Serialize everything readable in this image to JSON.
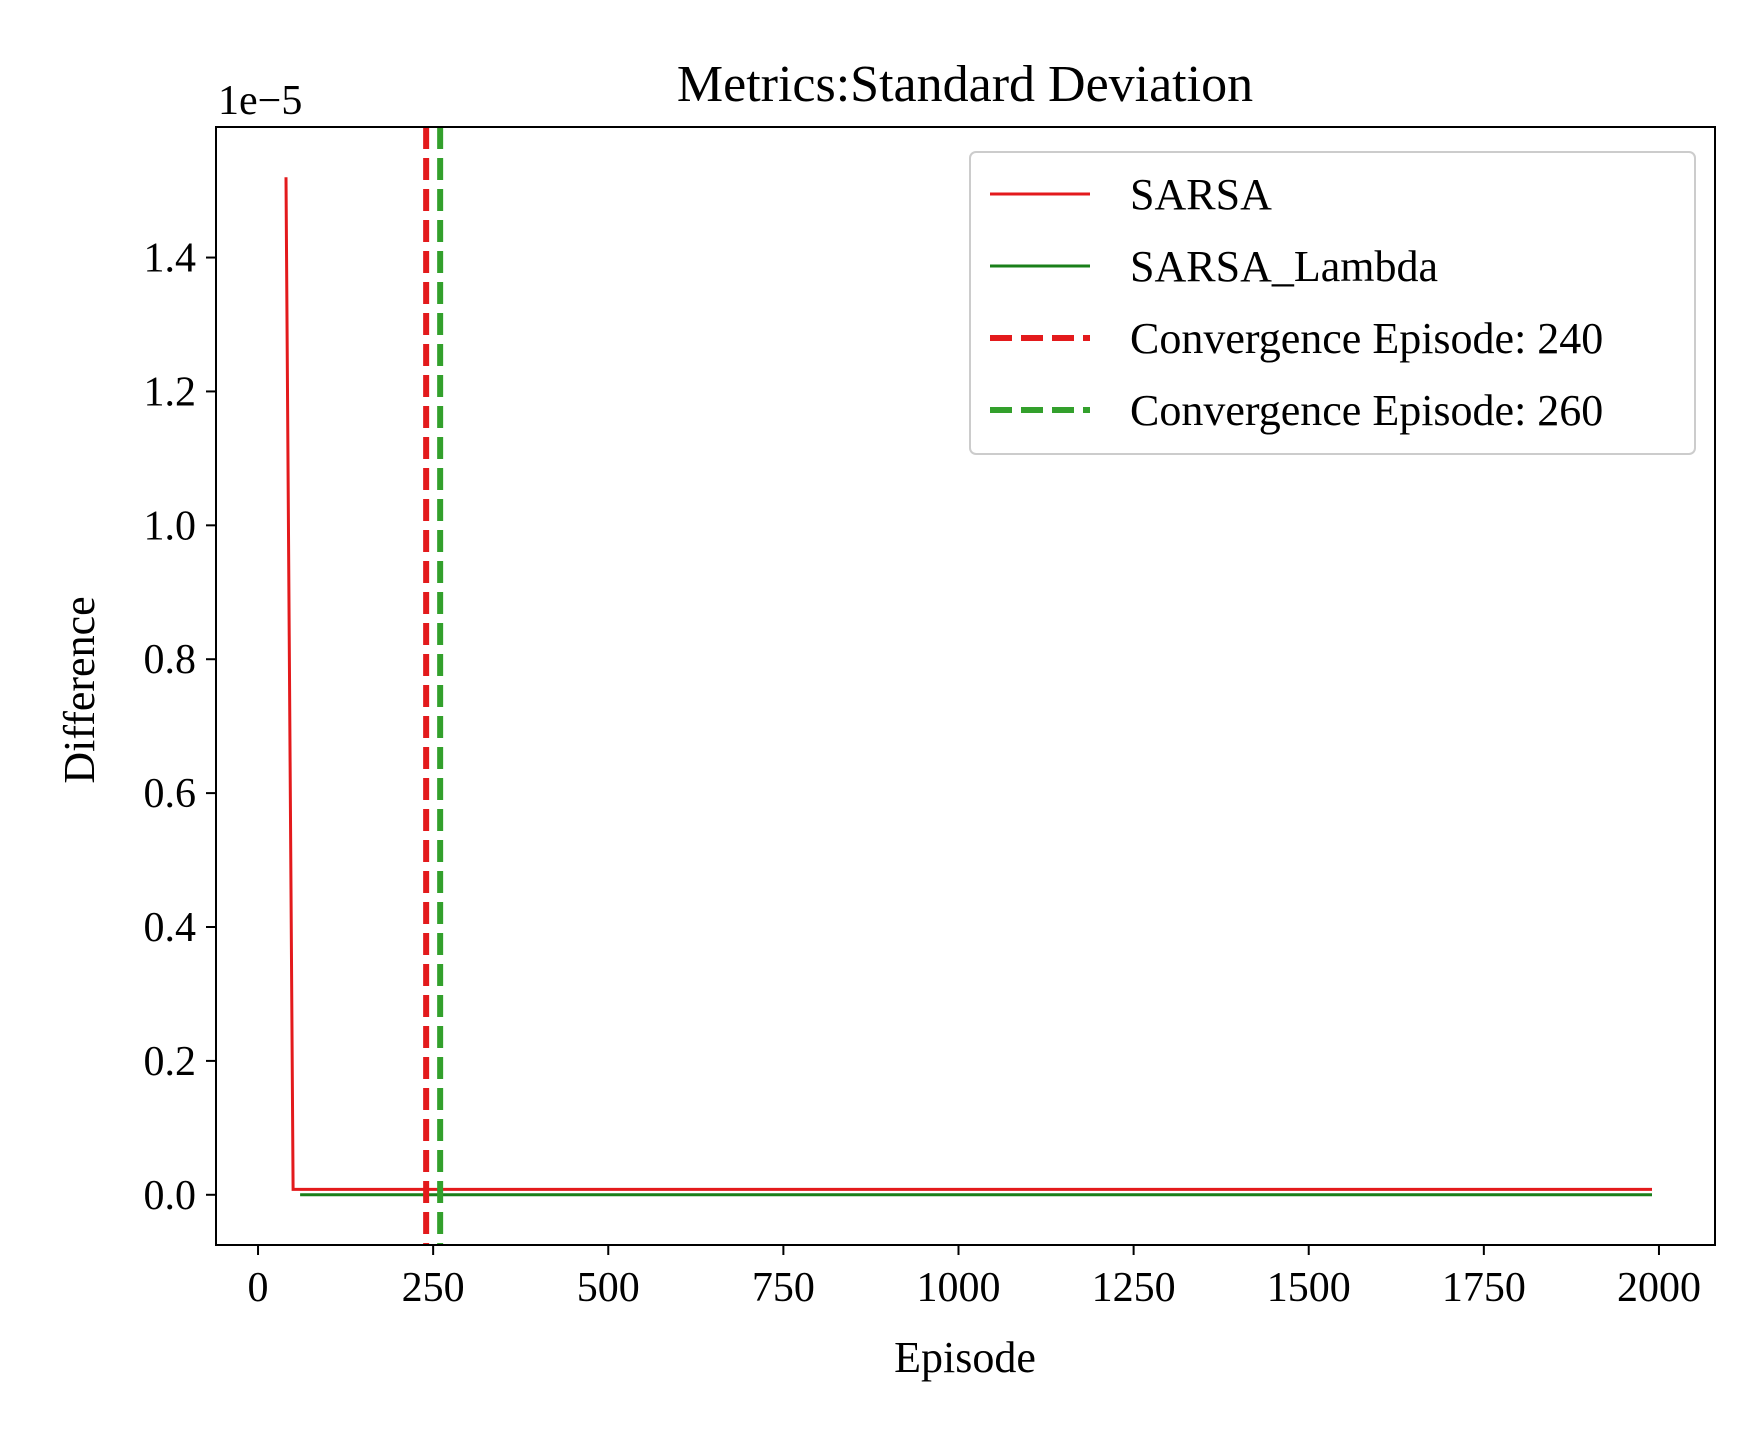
{
  "chart_data": {
    "type": "line",
    "title": "Metrics:Standard Deviation",
    "xlabel": "Episode",
    "ylabel": "Difference",
    "y_offset_label": "1e−5",
    "xlim": [
      -60,
      2080
    ],
    "ylim": [
      -0.075,
      1.595
    ],
    "x_ticks": [
      0,
      250,
      500,
      750,
      1000,
      1250,
      1500,
      1750,
      2000
    ],
    "x_tick_labels": [
      "0",
      "250",
      "500",
      "750",
      "1000",
      "1250",
      "1500",
      "1750",
      "2000"
    ],
    "y_ticks": [
      0.0,
      0.2,
      0.4,
      0.6,
      0.8,
      1.0,
      1.2,
      1.4
    ],
    "y_tick_labels": [
      "0.0",
      "0.2",
      "0.4",
      "0.6",
      "0.8",
      "1.0",
      "1.2",
      "1.4"
    ],
    "grid": false,
    "legend_position": "top-right",
    "series": [
      {
        "name": "SARSA",
        "color": "#e31a1c",
        "style": "solid",
        "x": [
          40,
          50,
          60,
          1990
        ],
        "y": [
          1.52,
          0.008,
          0.008,
          0.008
        ]
      },
      {
        "name": "SARSA_Lambda",
        "color": "#1a7f1a",
        "style": "solid",
        "x": [
          60,
          1990
        ],
        "y": [
          0.0,
          0.0
        ]
      }
    ],
    "vlines": [
      {
        "label": "Convergence Episode: 240",
        "x": 240,
        "color": "#e31a1c",
        "style": "dashed"
      },
      {
        "label": "Convergence Episode: 260",
        "x": 260,
        "color": "#33a02c",
        "style": "dashed"
      }
    ]
  }
}
